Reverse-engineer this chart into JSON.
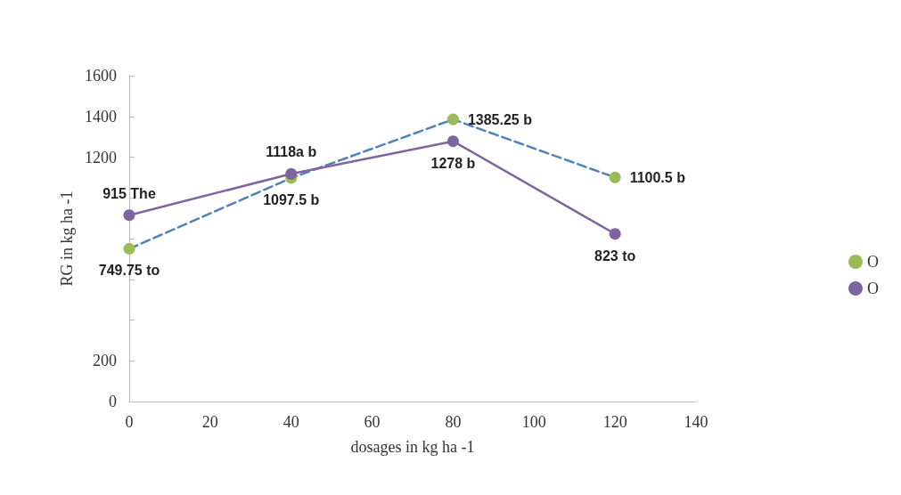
{
  "chart_data": {
    "type": "line",
    "xlabel": "dosages in kg ha -1",
    "ylabel": "RG in kg ha -1",
    "x": [
      0,
      40,
      80,
      120
    ],
    "xlim": [
      0,
      140
    ],
    "xticks": [
      0,
      20,
      40,
      60,
      80,
      100,
      120,
      140
    ],
    "ylim": [
      0,
      1600
    ],
    "yticks": [
      0,
      200,
      {
        "value": 400,
        "label": null
      },
      {
        "value": 600,
        "label": null
      },
      {
        "value": 800,
        "label": null
      },
      {
        "value": 1000,
        "label": null
      },
      1200,
      1400,
      1600
    ],
    "grid": false,
    "legend": "right",
    "marker": "circle",
    "series": [
      {
        "name": "O",
        "color": "#4f81bd",
        "colors": [
          "#9bbb59",
          "#9bbb59",
          "#9bbb59",
          "#9bbb59"
        ],
        "line_style": "dashed",
        "values": [
          749.75,
          1097.5,
          1385.25,
          1100.5
        ],
        "value_labels": [
          "749.75 to",
          "1097.5 b",
          "1385.25 b",
          "1100.5 b"
        ]
      },
      {
        "name": "O",
        "color": "#8064a2",
        "colors": [
          "#8064a2",
          "#8064a2",
          "#8064a2",
          "#8064a2"
        ],
        "line_style": "solid",
        "values": [
          915,
          1118,
          1278,
          823
        ],
        "value_labels": [
          "915 The",
          "1118a b",
          "1278 b",
          "823 to"
        ]
      }
    ]
  }
}
